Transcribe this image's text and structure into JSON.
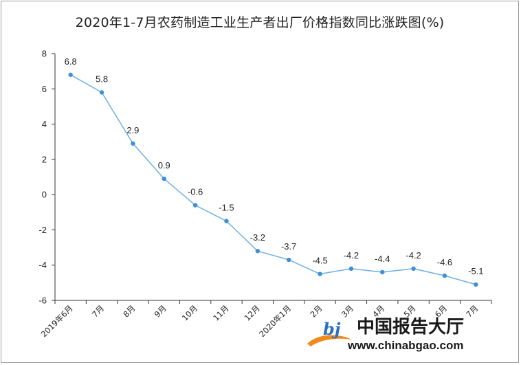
{
  "chart_data": {
    "type": "line",
    "title": "2020年1-7月农药制造工业生产者出厂价格指数同比涨跌图(%)",
    "categories": [
      "2019年6月",
      "7月",
      "8月",
      "9月",
      "10月",
      "11月",
      "12月",
      "2020年1月",
      "2月",
      "3月",
      "4月",
      "5月",
      "6月",
      "7月"
    ],
    "series": [
      {
        "values": [
          6.8,
          5.8,
          2.9,
          0.9,
          -0.6,
          -1.5,
          -3.2,
          -3.7,
          -4.5,
          -4.2,
          -4.4,
          -4.2,
          -4.6,
          -5.1
        ]
      }
    ],
    "data_labels": [
      "6.8",
      "5.8",
      "2.9",
      "0.9",
      "-0.6",
      "-1.5",
      "-3.2",
      "-3.7",
      "-4.5",
      "-4.2",
      "-4.4",
      "-4.2",
      "-4.6",
      "-5.1"
    ],
    "ylim": [
      -6,
      8
    ],
    "yticks": [
      8,
      6,
      4,
      2,
      0,
      -2,
      -4,
      -6
    ],
    "ytick_labels": [
      "8",
      "6",
      "4",
      "2",
      "0",
      "-2",
      "-4",
      "-6"
    ],
    "grid": false,
    "legend": "none",
    "line_color": "#74b4e8",
    "marker_color": "#3d8fd8"
  },
  "watermark": {
    "name": "中国报告大厅",
    "url": "www.chinabgao.com"
  }
}
